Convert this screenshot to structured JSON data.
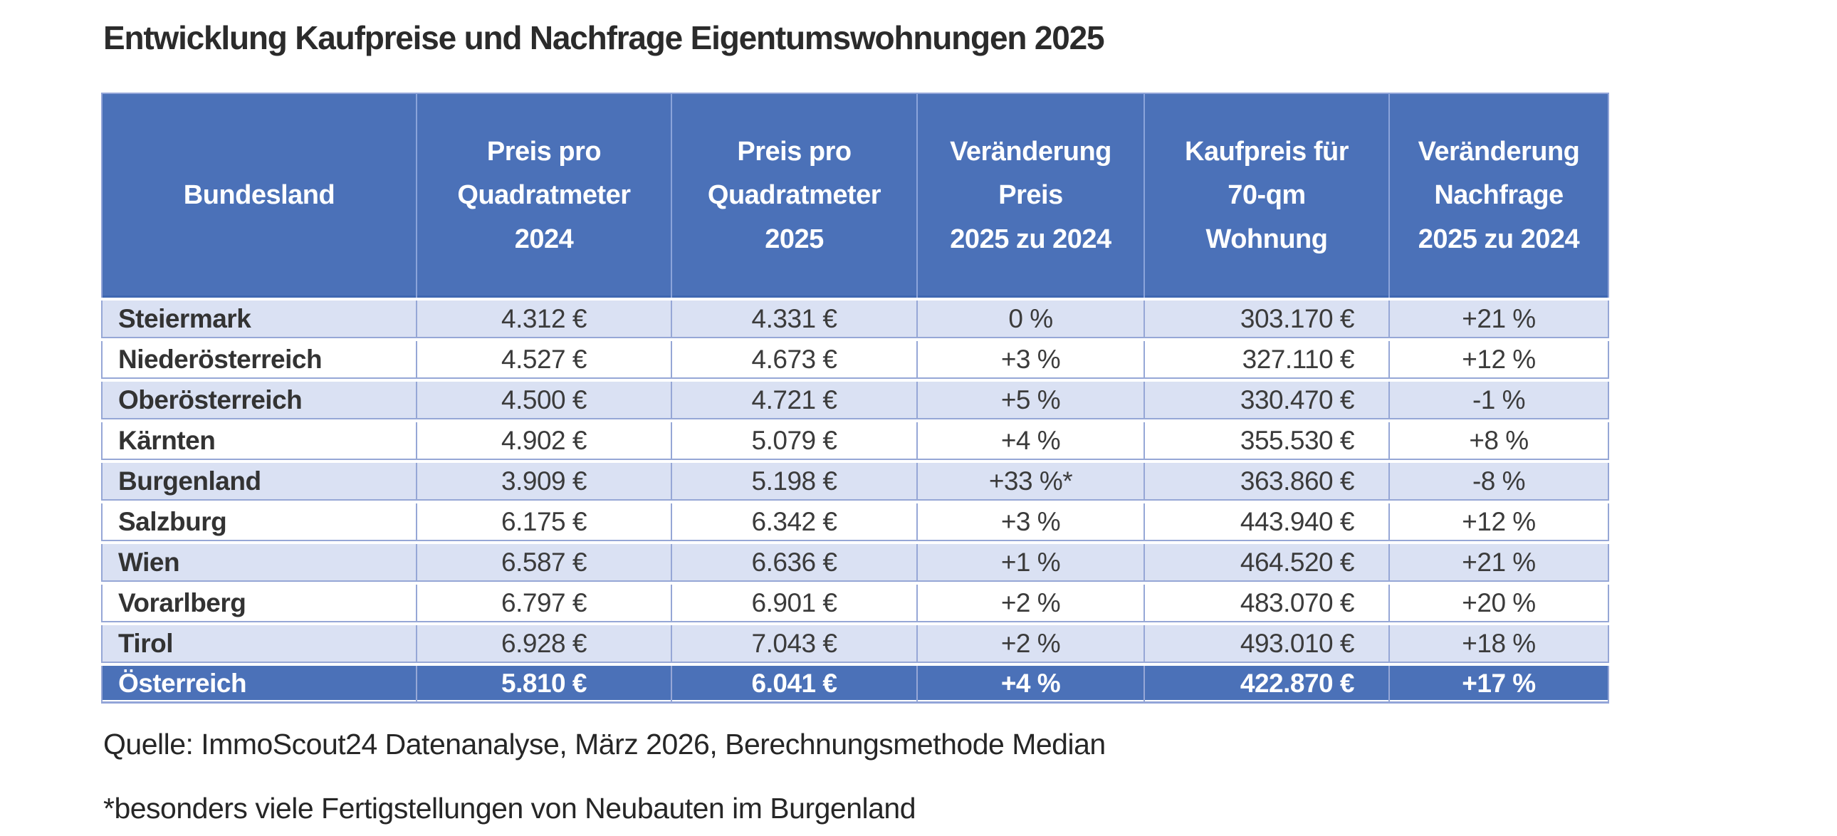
{
  "title": "Entwicklung Kaufpreise und Nachfrage Eigentumswohnungen 2025",
  "table": {
    "columns": [
      {
        "label": "Bundesland"
      },
      {
        "label": "Preis pro\nQuadratmeter\n2024"
      },
      {
        "label": "Preis pro\nQuadratmeter\n2025"
      },
      {
        "label": "Veränderung\nPreis\n2025 zu 2024"
      },
      {
        "label": "Kaufpreis für\n70-qm\nWohnung"
      },
      {
        "label": "Veränderung\nNachfrage\n2025 zu 2024"
      }
    ],
    "rows": [
      [
        "Steiermark",
        "4.312 €",
        "4.331 €",
        "0 %",
        "303.170 €",
        "+21 %"
      ],
      [
        "Niederösterreich",
        "4.527 €",
        "4.673 €",
        "+3 %",
        "327.110 €",
        "+12 %"
      ],
      [
        "Oberösterreich",
        "4.500 €",
        "4.721 €",
        "+5 %",
        "330.470 €",
        "-1 %"
      ],
      [
        "Kärnten",
        "4.902 €",
        "5.079 €",
        "+4 %",
        "355.530 €",
        "+8 %"
      ],
      [
        "Burgenland",
        "3.909 €",
        "5.198 €",
        "+33 %*",
        "363.860 €",
        "-8 %"
      ],
      [
        "Salzburg",
        "6.175 €",
        "6.342 €",
        "+3 %",
        "443.940 €",
        "+12 %"
      ],
      [
        "Wien",
        "6.587 €",
        "6.636 €",
        "+1 %",
        "464.520 €",
        "+21 %"
      ],
      [
        "Vorarlberg",
        "6.797 €",
        "6.901 €",
        "+2 %",
        "483.070 €",
        "+20 %"
      ],
      [
        "Tirol",
        "6.928 €",
        "7.043 €",
        "+2 %",
        "493.010 €",
        "+18 %"
      ],
      [
        "Österreich",
        "5.810 €",
        "6.041 €",
        "+4 %",
        "422.870 €",
        "+17 %"
      ]
    ]
  },
  "footnotes": {
    "source": "Quelle: ImmoScout24 Datenanalyse, März 2026, Berechnungsmethode Median",
    "asterisk": "*besonders viele Fertigstellungen von Neubauten im Burgenland"
  },
  "colors": {
    "header_bg": "#4b71b8",
    "stripe_bg": "#dae1f3",
    "border": "#96a7d6",
    "outer_border": "#93a5d8",
    "header_rule": "#3f67b1",
    "header_text": "#ffffff",
    "body_text": "#3b3b3b",
    "title_text": "#2b2b2b"
  },
  "chart_data": {
    "type": "table",
    "title": "Entwicklung Kaufpreise und Nachfrage Eigentumswohnungen 2025",
    "categories": [
      "Steiermark",
      "Niederösterreich",
      "Oberösterreich",
      "Kärnten",
      "Burgenland",
      "Salzburg",
      "Wien",
      "Vorarlberg",
      "Tirol"
    ],
    "series": [
      {
        "name": "Preis pro Quadratmeter 2024 (EUR)",
        "values": [
          4312,
          4527,
          4500,
          4902,
          3909,
          6175,
          6587,
          6797,
          6928
        ]
      },
      {
        "name": "Preis pro Quadratmeter 2025 (EUR)",
        "values": [
          4331,
          4673,
          4721,
          5079,
          5198,
          6342,
          6636,
          6901,
          7043
        ]
      },
      {
        "name": "Veränderung Preis 2025 zu 2024 (%)",
        "values": [
          0,
          3,
          5,
          4,
          33,
          3,
          1,
          2,
          2
        ]
      },
      {
        "name": "Kaufpreis für 70-qm Wohnung (EUR)",
        "values": [
          303170,
          327110,
          330470,
          355530,
          363860,
          443940,
          464520,
          483070,
          493010
        ]
      },
      {
        "name": "Veränderung Nachfrage 2025 zu 2024 (%)",
        "values": [
          21,
          12,
          -1,
          8,
          -8,
          12,
          21,
          20,
          18
        ]
      }
    ],
    "totals_row": {
      "name": "Österreich",
      "preis_2024_eur": 5810,
      "preis_2025_eur": 6041,
      "veraenderung_preis_pct": 4,
      "kaufpreis_70qm_eur": 422870,
      "veraenderung_nachfrage_pct": 17
    },
    "notes": [
      "Quelle: ImmoScout24 Datenanalyse, März 2026, Berechnungsmethode Median",
      "*besonders viele Fertigstellungen von Neubauten im Burgenland"
    ]
  }
}
